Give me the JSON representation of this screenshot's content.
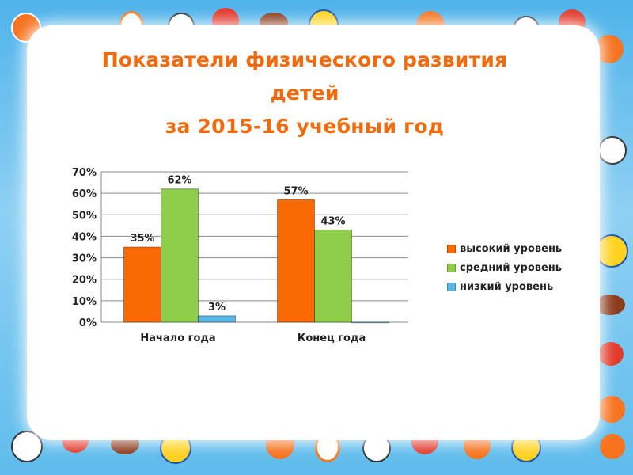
{
  "slide": {
    "title_lines": [
      "Показатели физического развития",
      "детей",
      "за 2015-16 учебный год"
    ]
  },
  "colors": {
    "title": "#f26a0c",
    "frame": "#5fbcec"
  },
  "chart_data": {
    "type": "bar",
    "categories": [
      "Начало года",
      "Конец года"
    ],
    "series": [
      {
        "name": "высокий уровень",
        "values": [
          35,
          57
        ],
        "labels": [
          "35%",
          "57%"
        ],
        "color": "#f96a04"
      },
      {
        "name": "средний уровень",
        "values": [
          62,
          43
        ],
        "labels": [
          "62%",
          "43%"
        ],
        "color": "#8ece4a"
      },
      {
        "name": "низкий уровень",
        "values": [
          3,
          0
        ],
        "labels": [
          "3%",
          ""
        ],
        "color": "#5bb6e8"
      }
    ],
    "yticks": [
      "0%",
      "10%",
      "20%",
      "30%",
      "40%",
      "50%",
      "60%",
      "70%"
    ],
    "ylim": [
      0,
      70
    ],
    "grid": true,
    "legend_position": "right"
  }
}
